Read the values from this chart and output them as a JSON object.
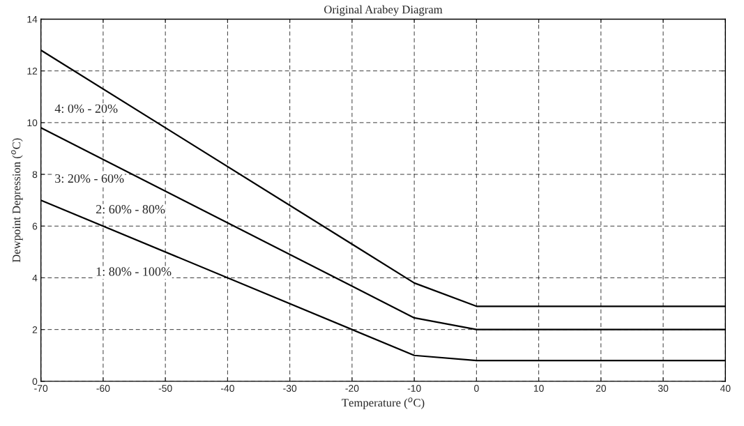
{
  "chart_data": {
    "type": "line",
    "title": "Original Arabey Diagram",
    "xlabel": "Temperature ($^{o}$C)",
    "ylabel": "Dewpoint Depression ($^{o}$C)",
    "x": [
      -70,
      -10,
      0,
      40
    ],
    "series": [
      {
        "color": "#000000",
        "values": [
          12.8,
          3.8,
          2.9,
          2.9
        ]
      },
      {
        "color": "#000000",
        "values": [
          9.8,
          2.45,
          2.0,
          2.0
        ]
      },
      {
        "color": "#000000",
        "values": [
          7.0,
          1.0,
          0.8,
          0.8
        ]
      }
    ],
    "annotations": [
      "4: 0% - 20%",
      "3: 20% - 60%",
      "2: 60% - 80%",
      "1: 80% - 100%"
    ],
    "xlim": [
      -70,
      40
    ],
    "xticks": [
      -70,
      -60,
      -50,
      -40,
      -30,
      -20,
      -10,
      0,
      10,
      20,
      30,
      40
    ],
    "ylim": [
      0,
      14
    ],
    "yticks": [
      0,
      2,
      4,
      6,
      8,
      10,
      12,
      14
    ],
    "grid": true,
    "line_style": "solid",
    "marker": "none"
  }
}
